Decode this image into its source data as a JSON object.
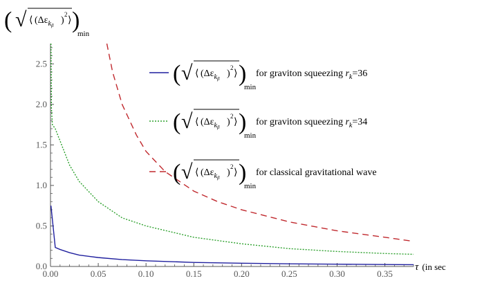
{
  "chart_data": {
    "type": "line",
    "title": "",
    "ylabel": {
      "base": "(Δε",
      "sub_k": "k",
      "sub_beta": "β",
      "sup": "2",
      "suffix": "min"
    },
    "xlabel": {
      "symbol": "τ",
      "unit": "(in sec"
    },
    "xlim": [
      0,
      0.38
    ],
    "ylim": [
      0,
      2.75
    ],
    "xticks": [
      "0.00",
      "0.05",
      "0.10",
      "0.15",
      "0.20",
      "0.25",
      "0.30",
      "0.35"
    ],
    "xtick_values": [
      0,
      0.05,
      0.1,
      0.15,
      0.2,
      0.25,
      0.3,
      0.35
    ],
    "yticks": [
      "0.0",
      "0.5",
      "1.0",
      "1.5",
      "2.0",
      "2.5"
    ],
    "ytick_values": [
      0,
      0.5,
      1.0,
      1.5,
      2.0,
      2.5
    ],
    "grid": false,
    "legend_position": "top-right",
    "series": [
      {
        "name": "for graviton squeezing",
        "param_symbol": "r",
        "param_sub": "k",
        "param_value": "=36",
        "color": "#1f1f9e",
        "dash": "solid",
        "x": [
          0.0005,
          0.005,
          0.01,
          0.02,
          0.03,
          0.05,
          0.075,
          0.1,
          0.15,
          0.2,
          0.25,
          0.3,
          0.35,
          0.38
        ],
        "y": [
          0.75,
          0.235,
          0.21,
          0.17,
          0.14,
          0.11,
          0.085,
          0.07,
          0.05,
          0.04,
          0.033,
          0.028,
          0.024,
          0.022
        ]
      },
      {
        "name": "for graviton squeezing",
        "param_symbol": "r",
        "param_sub": "k",
        "param_value": "=34",
        "color": "#2ca02c",
        "dash": "dotted",
        "x": [
          0.0005,
          0.001,
          0.002,
          0.005,
          0.01,
          0.02,
          0.03,
          0.05,
          0.075,
          0.1,
          0.15,
          0.2,
          0.25,
          0.3,
          0.35,
          0.38
        ],
        "y": [
          2.75,
          1.95,
          1.75,
          1.7,
          1.55,
          1.25,
          1.05,
          0.8,
          0.6,
          0.5,
          0.36,
          0.28,
          0.22,
          0.185,
          0.16,
          0.15
        ],
        "label_position": "middle"
      },
      {
        "name": "for classical gravitational wave",
        "color": "#c0282d",
        "dash": "dashed",
        "x": [
          0.059,
          0.065,
          0.075,
          0.09,
          0.1,
          0.12,
          0.15,
          0.175,
          0.2,
          0.25,
          0.3,
          0.35,
          0.38
        ],
        "y": [
          2.75,
          2.4,
          2.0,
          1.62,
          1.42,
          1.17,
          0.93,
          0.8,
          0.7,
          0.55,
          0.44,
          0.36,
          0.31
        ]
      }
    ]
  }
}
